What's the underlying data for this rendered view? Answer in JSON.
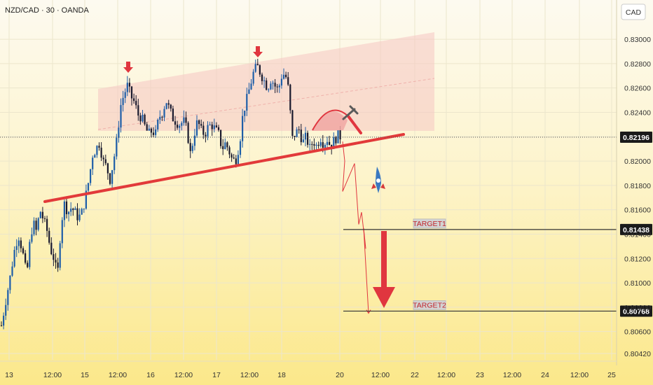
{
  "chart_data": {
    "type": "candlestick",
    "symbol": "NZD/CAD · 30 · OANDA",
    "currency": "CAD",
    "y_ticks": [
      0.83,
      0.828,
      0.826,
      0.824,
      0.822,
      0.82,
      0.818,
      0.816,
      0.814,
      0.812,
      0.81,
      0.808,
      0.806,
      0.8042
    ],
    "y_tick_labels": [
      "0.83000",
      "0.82800",
      "0.82600",
      "0.82400",
      "0.82200",
      "0.82000",
      "0.81800",
      "0.81600",
      "0.81400",
      "0.81200",
      "0.81000",
      "0.80800",
      "0.80600",
      "0.80420"
    ],
    "ylim": [
      0.8037,
      0.8315
    ],
    "x_ticks": [
      "13",
      "12:00",
      "15",
      "12:00",
      "16",
      "12:00",
      "17",
      "12:00",
      "18",
      "20",
      "12:00",
      "22",
      "12:00",
      "23",
      "12:00",
      "24",
      "12:00",
      "25"
    ],
    "current_price": 0.82196,
    "current_price_label": "0.82196",
    "targets": [
      {
        "name": "TARGET1",
        "price": 0.81438,
        "price_label": "0.81438"
      },
      {
        "name": "TARGET2",
        "price": 0.80768,
        "price_label": "0.80768"
      }
    ],
    "price_path": [
      [
        0,
        0.8065
      ],
      [
        6,
        0.8085
      ],
      [
        12,
        0.8103
      ],
      [
        18,
        0.8125
      ],
      [
        24,
        0.814
      ],
      [
        28,
        0.8131
      ],
      [
        32,
        0.812
      ],
      [
        36,
        0.8105
      ],
      [
        40,
        0.813
      ],
      [
        45,
        0.815
      ],
      [
        50,
        0.8142
      ],
      [
        55,
        0.816
      ],
      [
        60,
        0.8152
      ],
      [
        65,
        0.8143
      ],
      [
        70,
        0.8128
      ],
      [
        75,
        0.812
      ],
      [
        80,
        0.8105
      ],
      [
        85,
        0.8148
      ],
      [
        90,
        0.8165
      ],
      [
        95,
        0.8158
      ],
      [
        100,
        0.8162
      ],
      [
        105,
        0.8158
      ],
      [
        110,
        0.8153
      ],
      [
        115,
        0.8158
      ],
      [
        120,
        0.817
      ],
      [
        125,
        0.8185
      ],
      [
        130,
        0.8205
      ],
      [
        135,
        0.821
      ],
      [
        140,
        0.8215
      ],
      [
        145,
        0.82
      ],
      [
        150,
        0.8195
      ],
      [
        155,
        0.8185
      ],
      [
        160,
        0.82
      ],
      [
        165,
        0.8218
      ],
      [
        170,
        0.8245
      ],
      [
        175,
        0.8255
      ],
      [
        180,
        0.8262
      ],
      [
        185,
        0.8253
      ],
      [
        190,
        0.8248
      ],
      [
        195,
        0.8238
      ],
      [
        200,
        0.8236
      ],
      [
        205,
        0.8228
      ],
      [
        210,
        0.8222
      ],
      [
        215,
        0.8225
      ],
      [
        220,
        0.8222
      ],
      [
        225,
        0.8236
      ],
      [
        230,
        0.824
      ],
      [
        235,
        0.825
      ],
      [
        240,
        0.8242
      ],
      [
        245,
        0.8235
      ],
      [
        250,
        0.8232
      ],
      [
        255,
        0.823
      ],
      [
        260,
        0.8233
      ],
      [
        265,
        0.8225
      ],
      [
        270,
        0.8205
      ],
      [
        275,
        0.8222
      ],
      [
        280,
        0.8233
      ],
      [
        285,
        0.8225
      ],
      [
        290,
        0.8222
      ],
      [
        295,
        0.8228
      ],
      [
        300,
        0.823
      ],
      [
        305,
        0.8226
      ],
      [
        310,
        0.8222
      ],
      [
        315,
        0.821
      ],
      [
        320,
        0.8215
      ],
      [
        325,
        0.8208
      ],
      [
        330,
        0.82
      ],
      [
        335,
        0.8202
      ],
      [
        340,
        0.8215
      ],
      [
        345,
        0.824
      ],
      [
        350,
        0.825
      ],
      [
        355,
        0.8262
      ],
      [
        360,
        0.8273
      ],
      [
        365,
        0.8278
      ],
      [
        370,
        0.8272
      ],
      [
        375,
        0.8266
      ],
      [
        380,
        0.826
      ],
      [
        385,
        0.8268
      ],
      [
        390,
        0.8262
      ],
      [
        395,
        0.8258
      ],
      [
        400,
        0.827
      ],
      [
        405,
        0.8272
      ],
      [
        410,
        0.8258
      ],
      [
        415,
        0.8218
      ],
      [
        420,
        0.8223
      ],
      [
        425,
        0.8226
      ],
      [
        430,
        0.8215
      ],
      [
        435,
        0.822
      ],
      [
        440,
        0.821
      ],
      [
        445,
        0.8217
      ],
      [
        450,
        0.8212
      ],
      [
        455,
        0.822
      ],
      [
        460,
        0.8214
      ],
      [
        465,
        0.8218
      ],
      [
        470,
        0.8212
      ],
      [
        475,
        0.8217
      ],
      [
        480,
        0.8221
      ],
      [
        485,
        0.822
      ]
    ],
    "forecast_path": [
      [
        487,
        0.8216
      ],
      [
        490,
        0.82
      ],
      [
        487,
        0.8175
      ],
      [
        504,
        0.8198
      ],
      [
        510,
        0.8148
      ],
      [
        514,
        0.8158
      ],
      [
        520,
        0.8128
      ],
      [
        517,
        0.8145
      ],
      [
        524,
        0.8075
      ]
    ]
  },
  "colors": {
    "bg_top": "#fdfaf0",
    "bg_bottom": "#fbe88a",
    "up": "#1e5ea8",
    "down": "#1a1a2e",
    "trendline": "#e23a3a",
    "channel": "#f5c6c2",
    "arrow": "#e0363f",
    "price_label_bg": "#1a1a1a",
    "target_label_bg": "#d3d3d3",
    "grid": "#ece6cc"
  }
}
